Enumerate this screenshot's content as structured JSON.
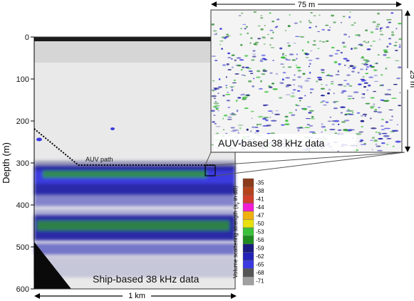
{
  "ship_panel": {
    "caption": "Ship-based 38 kHz data",
    "path_label": "AUV path",
    "ylabel": "Depth (m)",
    "yticks": [
      "0",
      "100",
      "200",
      "300",
      "400",
      "500",
      "600"
    ],
    "ylim": [
      0,
      600
    ],
    "scalebar_label": "1 km"
  },
  "auv_panel": {
    "caption": "AUV-based 38 kHz data",
    "width_label": "75 m",
    "height_label": "25 m"
  },
  "colorbar": {
    "title": "Volume scattering strength (s",
    "title_sub": "v",
    "title_end": " in dB)",
    "levels": [
      "-35",
      "-38",
      "-41",
      "-44",
      "-47",
      "-50",
      "-53",
      "-56",
      "-59",
      "-62",
      "-65",
      "-68",
      "-71"
    ],
    "colors": [
      "#8b3a1a",
      "#b5441c",
      "#d0402a",
      "#f01ed2",
      "#f0b010",
      "#e8e010",
      "#3cc03c",
      "#1f8a1f",
      "#1a1a80",
      "#2222b8",
      "#3a3ae0",
      "#555555",
      "#a0a0a0"
    ]
  }
}
